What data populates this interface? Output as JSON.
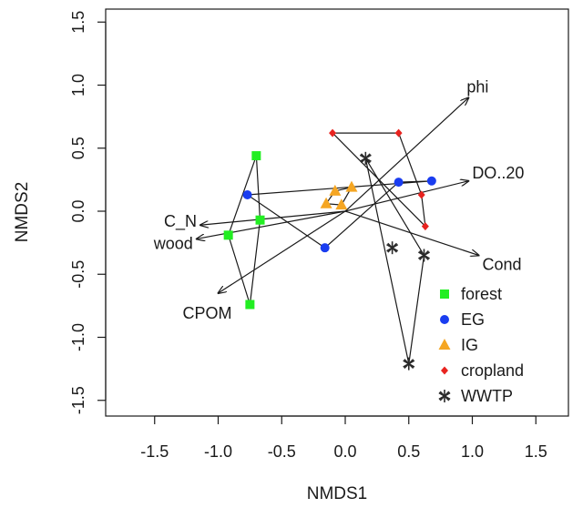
{
  "chart_data": {
    "type": "scatter",
    "xlabel": "NMDS1",
    "ylabel": "NMDS2",
    "xlim": [
      -1.9,
      1.75
    ],
    "ylim": [
      -1.62,
      1.62
    ],
    "xticks": [
      -1.5,
      -1.0,
      -0.5,
      0.0,
      0.5,
      1.0,
      1.5
    ],
    "xtick_labels": [
      "-1.5",
      "-1.0",
      "-0.5",
      "0.0",
      "0.5",
      "1.0",
      "1.5"
    ],
    "yticks": [
      -1.5,
      -1.0,
      -0.5,
      0.0,
      0.5,
      1.0,
      1.5
    ],
    "ytick_labels": [
      "-1.5",
      "-1.0",
      "-0.5",
      "0.0",
      "0.5",
      "1.0",
      "1.5"
    ],
    "legend_position": "bottom-right",
    "series": [
      {
        "name": "forest",
        "marker": "square",
        "color": "#22ee22",
        "points": [
          [
            -0.7,
            0.44
          ],
          [
            -0.67,
            -0.07
          ],
          [
            -0.92,
            -0.19
          ],
          [
            -0.75,
            -0.74
          ]
        ],
        "hull": [
          [
            -0.7,
            0.44
          ],
          [
            -0.67,
            -0.07
          ],
          [
            -0.75,
            -0.74
          ],
          [
            -0.92,
            -0.19
          ]
        ]
      },
      {
        "name": "EG",
        "marker": "circle",
        "color": "#1a3df0",
        "points": [
          [
            -0.77,
            0.13
          ],
          [
            -0.16,
            -0.29
          ],
          [
            0.42,
            0.23
          ],
          [
            0.68,
            0.24
          ]
        ],
        "hull": [
          [
            -0.77,
            0.13
          ],
          [
            0.68,
            0.24
          ],
          [
            0.42,
            0.23
          ],
          [
            -0.16,
            -0.29
          ]
        ]
      },
      {
        "name": "IG",
        "marker": "triangle",
        "color": "#f5a623",
        "points": [
          [
            -0.08,
            0.16
          ],
          [
            0.05,
            0.19
          ],
          [
            -0.03,
            0.05
          ],
          [
            -0.15,
            0.06
          ]
        ],
        "hull": [
          [
            -0.08,
            0.16
          ],
          [
            0.05,
            0.19
          ],
          [
            -0.03,
            0.05
          ],
          [
            -0.15,
            0.06
          ]
        ]
      },
      {
        "name": "cropland",
        "marker": "diamond",
        "color": "#e8231f",
        "points": [
          [
            -0.1,
            0.62
          ],
          [
            0.42,
            0.62
          ],
          [
            0.6,
            0.13
          ],
          [
            0.63,
            -0.12
          ]
        ],
        "hull": [
          [
            -0.1,
            0.62
          ],
          [
            0.42,
            0.62
          ],
          [
            0.6,
            0.13
          ],
          [
            0.63,
            -0.12
          ]
        ]
      },
      {
        "name": "WWTP",
        "marker": "asterisk",
        "color": "#2a2a2a",
        "points": [
          [
            0.16,
            0.42
          ],
          [
            0.37,
            -0.29
          ],
          [
            0.62,
            -0.35
          ],
          [
            0.5,
            -1.21
          ]
        ],
        "hull": [
          [
            0.16,
            0.42
          ],
          [
            0.62,
            -0.35
          ],
          [
            0.5,
            -1.21
          ]
        ]
      }
    ],
    "vectors": [
      {
        "label": "phi",
        "x": 0.97,
        "y": 0.9
      },
      {
        "label": "DO..20",
        "x": 0.97,
        "y": 0.24
      },
      {
        "label": "Cond",
        "x": 1.05,
        "y": -0.35
      },
      {
        "label": "C_N",
        "x": -1.14,
        "y": -0.11
      },
      {
        "label": "wood",
        "x": -1.17,
        "y": -0.22
      },
      {
        "label": "CPOM",
        "x": -1.0,
        "y": -0.65
      }
    ]
  }
}
